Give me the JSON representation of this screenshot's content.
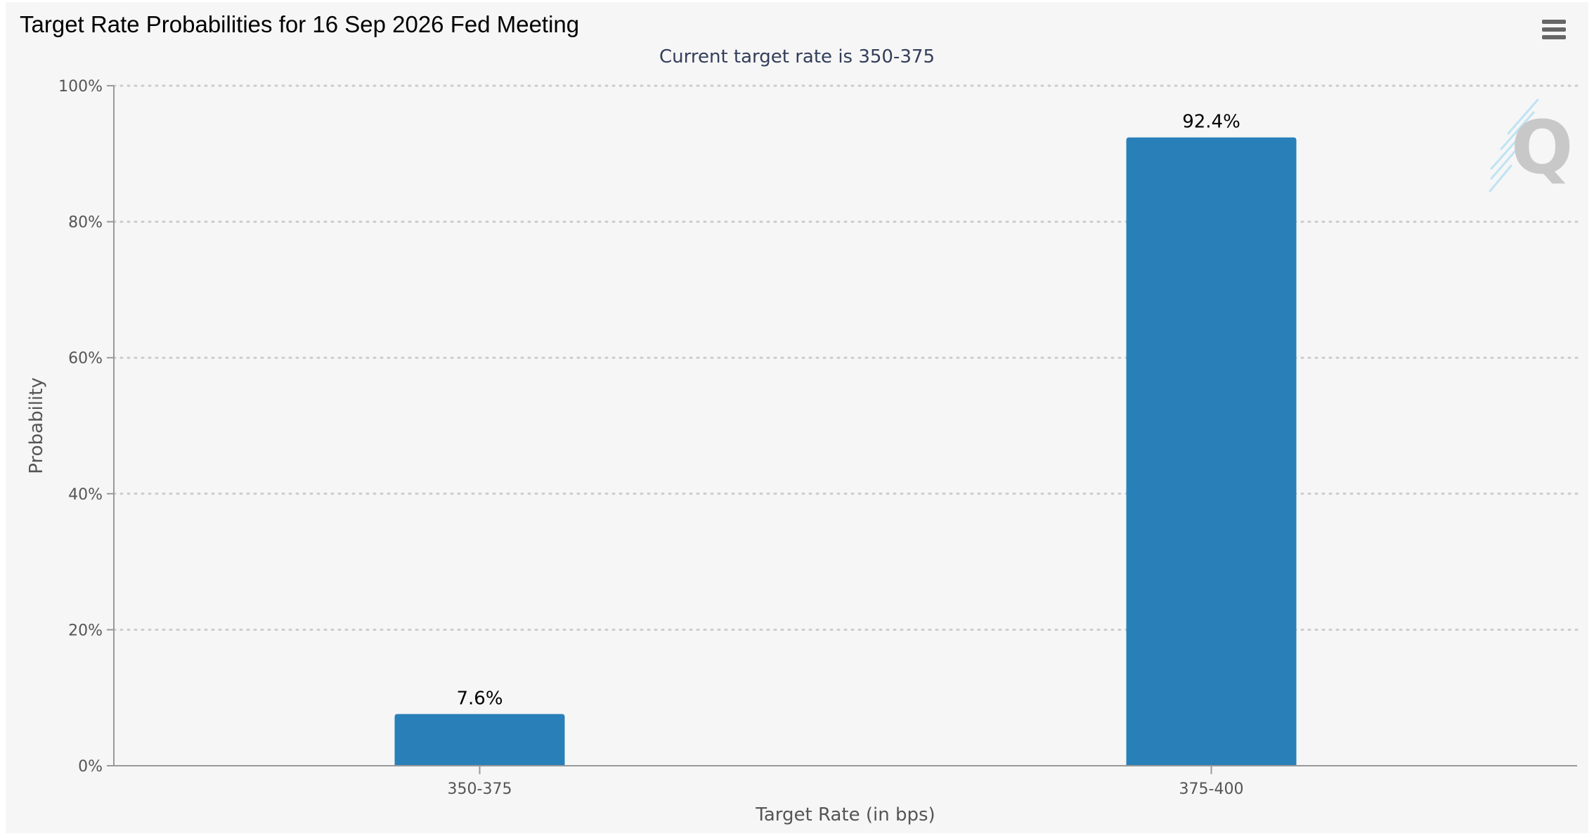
{
  "chart_data": {
    "type": "bar",
    "title": "Target Rate Probabilities for 16 Sep 2026 Fed Meeting",
    "subtitle": "Current target rate is 350-375",
    "xlabel": "Target Rate (in bps)",
    "ylabel": "Probability",
    "categories": [
      "350-375",
      "375-400"
    ],
    "values": [
      7.6,
      92.4
    ],
    "data_labels": [
      "7.6%",
      "92.4%"
    ],
    "ylim": [
      0,
      100
    ],
    "yticks": [
      0,
      20,
      40,
      60,
      80,
      100
    ],
    "ytick_labels": [
      "0%",
      "20%",
      "40%",
      "60%",
      "80%",
      "100%"
    ],
    "grid": true,
    "legend": "none",
    "colors": {
      "bar": "#2980b9",
      "grid": "#cccccc",
      "axis": "#999999",
      "background": "#f6f6f6"
    }
  },
  "toolbar": {
    "menu_icon": "hamburger-menu-icon"
  },
  "watermark": {
    "icon": "quikstrike-q-logo",
    "text": "Q"
  }
}
